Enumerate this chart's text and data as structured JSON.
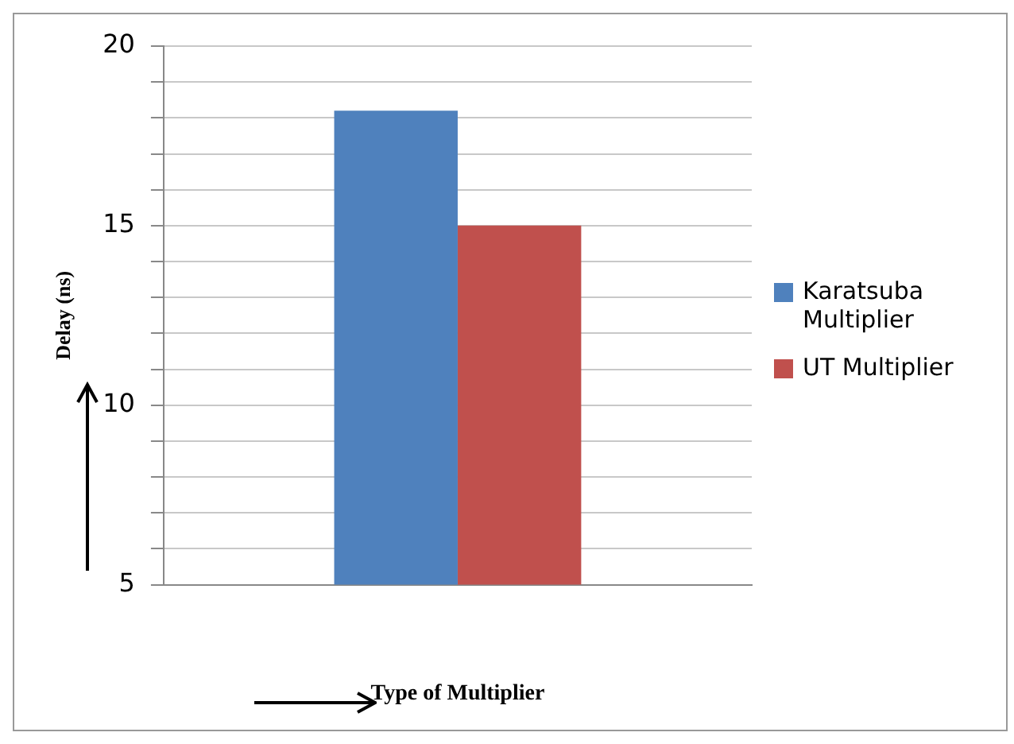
{
  "chart_data": {
    "type": "bar",
    "categories": [
      null
    ],
    "series": [
      {
        "name": "Karatsuba Multiplier",
        "color": "#4f81bd",
        "values": [
          18.2
        ]
      },
      {
        "name": "UT Multiplier",
        "color": "#c0504d",
        "values": [
          15
        ]
      }
    ],
    "ylabel": "Delay (ns)",
    "xlabel": "Type of Multiplier",
    "ylim": [
      5,
      20
    ],
    "yticks": [
      5,
      {
        "value": 6,
        "label": null
      },
      {
        "value": 7,
        "label": null
      },
      {
        "value": 8,
        "label": null
      },
      {
        "value": 9,
        "label": null
      },
      10,
      {
        "value": 11,
        "label": null
      },
      {
        "value": 12,
        "label": null
      },
      {
        "value": 13,
        "label": null
      },
      {
        "value": 14,
        "label": null
      },
      15,
      {
        "value": 16,
        "label": null
      },
      {
        "value": 17,
        "label": null
      },
      {
        "value": 18,
        "label": null
      },
      {
        "value": 19,
        "label": null
      },
      20
    ],
    "grid": "y",
    "legend": "right"
  }
}
